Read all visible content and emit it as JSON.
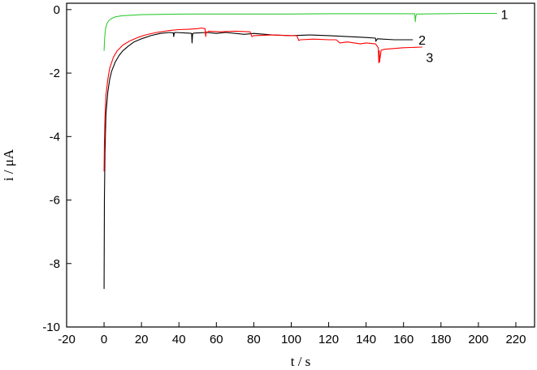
{
  "chart_data": {
    "type": "line",
    "xlabel": "t / s",
    "ylabel": "i / μA",
    "xlim": [
      -20,
      230
    ],
    "ylim": [
      -10,
      0.2
    ],
    "xticks": [
      -20,
      0,
      20,
      40,
      60,
      80,
      100,
      120,
      140,
      160,
      180,
      200,
      220
    ],
    "yticks": [
      0,
      -2,
      -4,
      -6,
      -8,
      -10
    ],
    "grid": false,
    "legend": "none",
    "colors": {
      "axis": "#000000",
      "series_1": "#33cc33",
      "series_2": "#000000",
      "series_3": "#ff0000"
    },
    "series": [
      {
        "name": "1",
        "color": "#33cc33",
        "x": [
          0,
          0.3,
          0.8,
          1.5,
          2.5,
          4,
          6,
          9,
          13,
          20,
          30,
          45,
          60,
          80,
          100,
          120,
          140,
          160,
          166,
          166.3,
          166.6,
          167,
          180,
          195,
          210
        ],
        "y": [
          -1.3,
          -0.9,
          -0.6,
          -0.45,
          -0.35,
          -0.28,
          -0.23,
          -0.2,
          -0.18,
          -0.16,
          -0.15,
          -0.14,
          -0.14,
          -0.14,
          -0.14,
          -0.13,
          -0.13,
          -0.13,
          -0.13,
          -0.38,
          -0.2,
          -0.14,
          -0.13,
          -0.12,
          -0.12
        ]
      },
      {
        "name": "2",
        "color": "#000000",
        "x": [
          0,
          0.2,
          0.5,
          1,
          2,
          3,
          4,
          6,
          8,
          10,
          13,
          16,
          20,
          25,
          30,
          35,
          37,
          37.2,
          37.5,
          38,
          45,
          46.8,
          47,
          47.3,
          48,
          55,
          60,
          65,
          75,
          80,
          90,
          100,
          110,
          120,
          130,
          140,
          145,
          145.2,
          146,
          155,
          165
        ],
        "y": [
          -8.8,
          -6,
          -4.5,
          -3.3,
          -2.6,
          -2.2,
          -1.95,
          -1.65,
          -1.45,
          -1.3,
          -1.15,
          -1.02,
          -0.92,
          -0.82,
          -0.75,
          -0.72,
          -0.73,
          -0.85,
          -0.74,
          -0.72,
          -0.74,
          -0.75,
          -1.05,
          -0.76,
          -0.74,
          -0.72,
          -0.75,
          -0.72,
          -0.78,
          -0.75,
          -0.8,
          -0.82,
          -0.8,
          -0.82,
          -0.85,
          -0.88,
          -0.9,
          -1.0,
          -0.92,
          -0.95,
          -0.95
        ]
      },
      {
        "name": "3",
        "color": "#ff0000",
        "x": [
          0,
          0.2,
          0.5,
          1,
          2,
          3,
          5,
          7,
          10,
          14,
          18,
          22,
          28,
          35,
          40,
          45,
          50,
          52,
          54,
          54.3,
          54.6,
          55,
          56,
          62,
          70,
          78,
          79,
          80,
          90,
          100,
          103,
          104,
          105,
          112,
          120,
          124,
          126,
          130,
          137,
          140,
          145,
          146.5,
          146.8,
          147,
          147.2,
          148,
          150,
          160,
          170
        ],
        "y": [
          -5.1,
          -4.2,
          -3.4,
          -2.7,
          -2.2,
          -1.85,
          -1.5,
          -1.3,
          -1.12,
          -0.98,
          -0.88,
          -0.8,
          -0.72,
          -0.66,
          -0.63,
          -0.62,
          -0.6,
          -0.58,
          -0.6,
          -0.85,
          -0.7,
          -0.72,
          -0.68,
          -0.7,
          -0.68,
          -0.7,
          -0.85,
          -0.82,
          -0.8,
          -0.82,
          -0.82,
          -0.97,
          -0.95,
          -0.93,
          -0.95,
          -0.95,
          -1.05,
          -1.02,
          -1.08,
          -1.05,
          -1.08,
          -1.2,
          -1.68,
          -1.3,
          -1.65,
          -1.28,
          -1.25,
          -1.2,
          -1.18
        ]
      }
    ],
    "curve_labels": [
      {
        "series": "1",
        "text": "1",
        "x": 212,
        "y": -0.15
      },
      {
        "series": "2",
        "text": "2",
        "x": 168,
        "y": -0.95
      },
      {
        "series": "3",
        "text": "3",
        "x": 172,
        "y": -1.5
      }
    ]
  }
}
